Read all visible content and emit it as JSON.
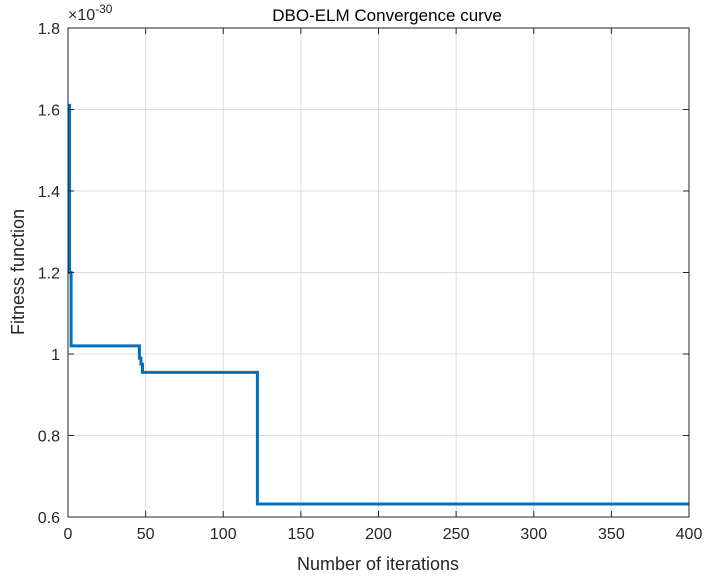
{
  "chart_data": {
    "type": "line",
    "title": "DBO-ELM Convergence curve",
    "xlabel": "Number of iterations",
    "ylabel": "Fitness function",
    "y_exponent_label": "×10",
    "y_exponent_value": "-30",
    "xlim": [
      0,
      400
    ],
    "ylim": [
      0.6,
      1.8
    ],
    "x_ticks": [
      0,
      50,
      100,
      150,
      200,
      250,
      300,
      350,
      400
    ],
    "x_tick_labels": [
      "0",
      "50",
      "100",
      "150",
      "200",
      "250",
      "300",
      "350",
      "400"
    ],
    "y_ticks": [
      0.6,
      0.8,
      1.0,
      1.2,
      1.4,
      1.6,
      1.8
    ],
    "y_tick_labels": [
      "0.6",
      "0.8",
      "1",
      "1.2",
      "1.4",
      "1.6",
      "1.8"
    ],
    "grid": true,
    "line_color": "#0072BD",
    "series": [
      {
        "x": [
          0,
          1,
          1,
          2,
          2,
          46,
          46,
          47,
          47,
          48,
          48,
          122,
          122,
          400
        ],
        "y": [
          1.61,
          1.61,
          1.2,
          1.2,
          1.02,
          1.02,
          0.99,
          0.99,
          0.975,
          0.975,
          0.955,
          0.955,
          0.632,
          0.632
        ]
      }
    ]
  }
}
